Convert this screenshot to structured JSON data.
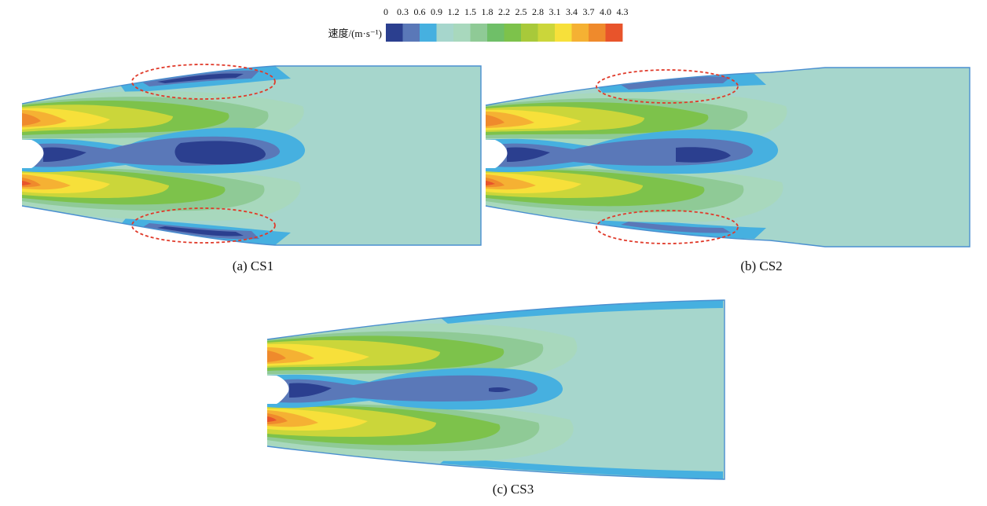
{
  "legend": {
    "title": "速度/(m·s⁻¹)",
    "tick_labels": [
      "0",
      "0.3",
      "0.6",
      "0.9",
      "1.2",
      "1.5",
      "1.8",
      "2.2",
      "2.5",
      "2.8",
      "3.1",
      "3.4",
      "3.7",
      "4.0",
      "4.3"
    ],
    "colors": [
      "#2b3f8f",
      "#5a78b8",
      "#46b0e0",
      "#a6d6cc",
      "#a8d8bd",
      "#8fca96",
      "#6fbf68",
      "#7dc24b",
      "#a8c93a",
      "#cbd63a",
      "#f7e03a",
      "#f5b133",
      "#ef8a2c",
      "#e8542b"
    ]
  },
  "panels": [
    {
      "id": "cs1",
      "caption": "(a) CS1",
      "highlight_color": "#e03a2a"
    },
    {
      "id": "cs2",
      "caption": "(b) CS2",
      "highlight_color": "#e03a2a"
    },
    {
      "id": "cs3",
      "caption": "(c) CS3"
    }
  ]
}
